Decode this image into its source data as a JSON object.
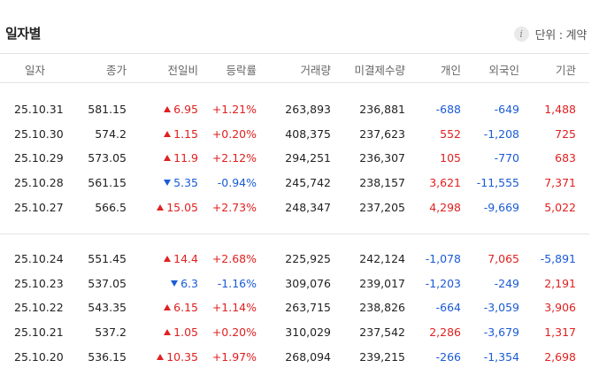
{
  "title": "일자별",
  "unit": {
    "icon": "info-icon",
    "label": "단위 : 계약"
  },
  "columns": [
    "일자",
    "종가",
    "전일비",
    "등락률",
    "거래량",
    "미결제수량",
    "개인",
    "외국인",
    "기관"
  ],
  "colors": {
    "up": "#e02020",
    "down": "#1a5bd6"
  },
  "groups": [
    [
      {
        "date": "25.10.31",
        "close": "581.15",
        "dir": "up",
        "change": "6.95",
        "rate": "+1.21%",
        "volume": "263,893",
        "oi": "236,881",
        "individual": "-688",
        "foreign": "-649",
        "institution": "1,488"
      },
      {
        "date": "25.10.30",
        "close": "574.2",
        "dir": "up",
        "change": "1.15",
        "rate": "+0.20%",
        "volume": "408,375",
        "oi": "237,623",
        "individual": "552",
        "foreign": "-1,208",
        "institution": "725"
      },
      {
        "date": "25.10.29",
        "close": "573.05",
        "dir": "up",
        "change": "11.9",
        "rate": "+2.12%",
        "volume": "294,251",
        "oi": "236,307",
        "individual": "105",
        "foreign": "-770",
        "institution": "683"
      },
      {
        "date": "25.10.28",
        "close": "561.15",
        "dir": "down",
        "change": "5.35",
        "rate": "-0.94%",
        "volume": "245,742",
        "oi": "238,157",
        "individual": "3,621",
        "foreign": "-11,555",
        "institution": "7,371"
      },
      {
        "date": "25.10.27",
        "close": "566.5",
        "dir": "up",
        "change": "15.05",
        "rate": "+2.73%",
        "volume": "248,347",
        "oi": "237,205",
        "individual": "4,298",
        "foreign": "-9,669",
        "institution": "5,022"
      }
    ],
    [
      {
        "date": "25.10.24",
        "close": "551.45",
        "dir": "up",
        "change": "14.4",
        "rate": "+2.68%",
        "volume": "225,925",
        "oi": "242,124",
        "individual": "-1,078",
        "foreign": "7,065",
        "institution": "-5,891"
      },
      {
        "date": "25.10.23",
        "close": "537.05",
        "dir": "down",
        "change": "6.3",
        "rate": "-1.16%",
        "volume": "309,076",
        "oi": "239,017",
        "individual": "-1,203",
        "foreign": "-249",
        "institution": "2,191"
      },
      {
        "date": "25.10.22",
        "close": "543.35",
        "dir": "up",
        "change": "6.15",
        "rate": "+1.14%",
        "volume": "263,715",
        "oi": "238,826",
        "individual": "-664",
        "foreign": "-3,059",
        "institution": "3,906"
      },
      {
        "date": "25.10.21",
        "close": "537.2",
        "dir": "up",
        "change": "1.05",
        "rate": "+0.20%",
        "volume": "310,029",
        "oi": "237,542",
        "individual": "2,286",
        "foreign": "-3,679",
        "institution": "1,317"
      },
      {
        "date": "25.10.20",
        "close": "536.15",
        "dir": "up",
        "change": "10.35",
        "rate": "+1.97%",
        "volume": "268,094",
        "oi": "239,215",
        "individual": "-266",
        "foreign": "-1,354",
        "institution": "2,698"
      }
    ]
  ]
}
